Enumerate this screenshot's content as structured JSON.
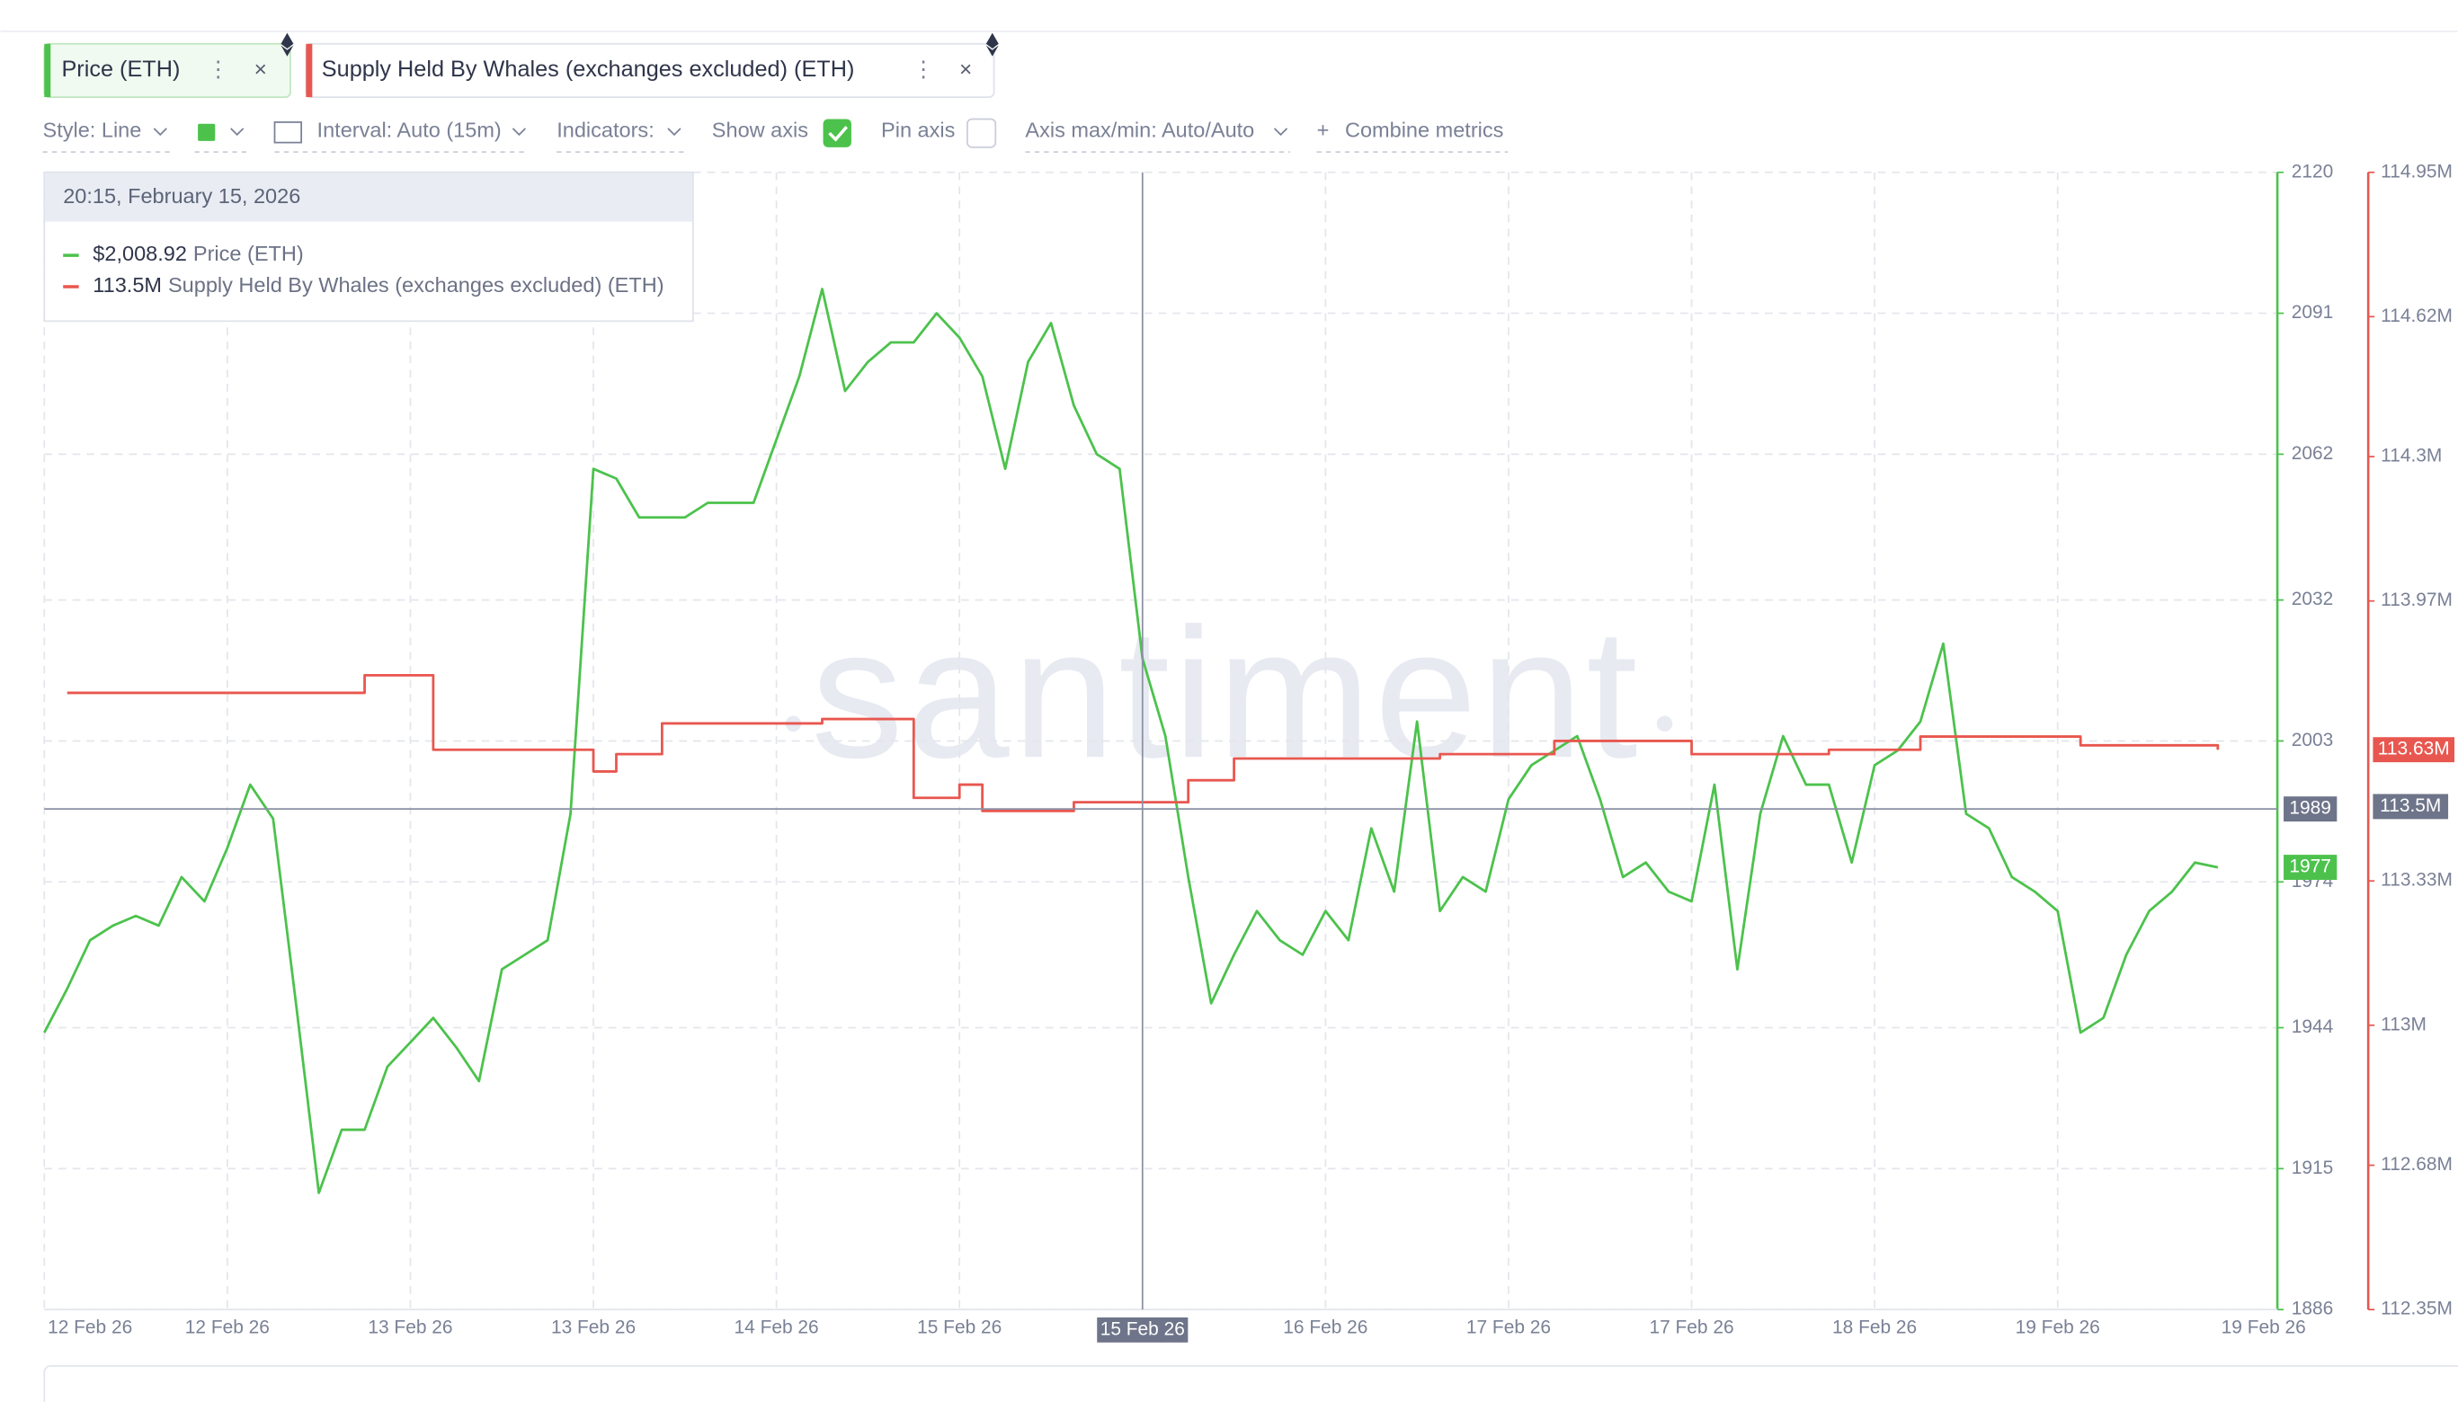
{
  "chart_data": {
    "type": "line",
    "watermark": "santiment",
    "toolbar": {
      "style": "Style: Line",
      "interval": "Interval: Auto (15m)",
      "indicators": "Indicators:",
      "show_axis": "Show axis",
      "pin_axis": "Pin axis",
      "axis_minmax": "Axis max/min: Auto/Auto",
      "combine": "Combine metrics"
    },
    "categories": [
      null,
      null,
      "12 Feb 26",
      null,
      null,
      null,
      null,
      null,
      "12 Feb 26",
      null,
      null,
      null,
      null,
      null,
      null,
      null,
      "13 Feb 26",
      null,
      null,
      null,
      null,
      null,
      null,
      null,
      "13 Feb 26",
      null,
      null,
      null,
      null,
      null,
      null,
      null,
      "14 Feb 26",
      null,
      null,
      null,
      null,
      null,
      null,
      null,
      "15 Feb 26",
      null,
      null,
      null,
      null,
      null,
      null,
      null,
      "15 Feb 26",
      null,
      null,
      null,
      null,
      null,
      null,
      null,
      "16 Feb 26",
      null,
      null,
      null,
      null,
      null,
      null,
      null,
      "17 Feb 26",
      null,
      null,
      null,
      null,
      null,
      null,
      null,
      "17 Feb 26",
      null,
      null,
      null,
      null,
      null,
      null,
      null,
      "18 Feb 26",
      null,
      null,
      null,
      null,
      null,
      null,
      null,
      "19 Feb 26",
      null,
      null,
      null,
      null,
      null,
      null,
      null,
      null,
      "19 Feb 26"
    ],
    "series": [
      {
        "name": "Price (ETH)",
        "color": "#4cc24c",
        "axis": "y",
        "values": [
          1943,
          1952,
          1962,
          1965,
          1967,
          1965,
          1975,
          1970,
          1981,
          1994,
          1987,
          1949,
          1910,
          1923,
          1923,
          1936,
          1941,
          1946,
          1940,
          1933,
          1956,
          1959,
          1962,
          1988,
          2059,
          2057,
          2049,
          2049,
          2049,
          2052,
          2052,
          2052,
          2065,
          2078,
          2096,
          2075,
          2081,
          2085,
          2085,
          2091,
          2086,
          2078,
          2059,
          2081,
          2089,
          2072,
          2062,
          2059,
          2020,
          2004,
          1975,
          1949,
          1959,
          1968,
          1962,
          1959,
          1968,
          1962,
          1985,
          1972,
          2007,
          1968,
          1975,
          1972,
          1991,
          1998,
          2001,
          2004,
          1991,
          1975,
          1978,
          1972,
          1970,
          1994,
          1956,
          1988,
          2004,
          1994,
          1994,
          1978,
          1998,
          2001,
          2007,
          2023,
          1988,
          1985,
          1975,
          1972,
          1968,
          1943,
          1946,
          1959,
          1968,
          1972,
          1978,
          1977,
          null,
          null
        ]
      },
      {
        "name": "Supply Held By Whales (exchanges excluded) (ETH)",
        "color": "#e8574f",
        "axis": "y2",
        "last_label": "113.63M",
        "values": [
          null,
          113.76,
          113.76,
          113.76,
          113.76,
          113.76,
          113.76,
          113.76,
          113.76,
          113.76,
          113.76,
          113.76,
          113.76,
          113.76,
          113.8,
          113.8,
          113.8,
          113.63,
          113.63,
          113.63,
          113.63,
          113.63,
          113.63,
          113.63,
          113.58,
          113.62,
          113.62,
          113.69,
          113.69,
          113.69,
          113.69,
          113.69,
          113.69,
          113.69,
          113.7,
          113.7,
          113.7,
          113.7,
          113.52,
          113.52,
          113.55,
          113.49,
          113.49,
          113.49,
          113.49,
          113.51,
          113.51,
          113.51,
          113.51,
          113.51,
          113.56,
          113.56,
          113.61,
          113.61,
          113.61,
          113.61,
          113.61,
          113.61,
          113.61,
          113.61,
          113.61,
          113.62,
          113.62,
          113.62,
          113.62,
          113.62,
          113.65,
          113.65,
          113.65,
          113.65,
          113.65,
          113.65,
          113.62,
          113.62,
          113.62,
          113.62,
          113.62,
          113.62,
          113.63,
          113.63,
          113.63,
          113.63,
          113.66,
          113.66,
          113.66,
          113.66,
          113.66,
          113.66,
          113.66,
          113.64,
          113.64,
          113.64,
          113.64,
          113.64,
          113.64,
          113.63,
          null,
          null
        ]
      }
    ],
    "ylim": [
      1886,
      2120
    ],
    "yticks": [
      1886,
      1915,
      1944,
      1974,
      2003,
      2032,
      2062,
      2091,
      2120
    ],
    "y2lim": [
      112.35,
      114.95
    ],
    "y2ticks": [
      {
        "value": 112.35,
        "label": "112.35M"
      },
      {
        "value": 112.68,
        "label": "112.68M"
      },
      {
        "value": 113,
        "label": "113M"
      },
      {
        "value": 113.33,
        "label": "113.33M"
      },
      {
        "value": 113.97,
        "label": "113.97M"
      },
      {
        "value": 114.3,
        "label": "114.3M"
      },
      {
        "value": 114.62,
        "label": "114.62M"
      },
      {
        "value": 114.95,
        "label": "114.95M"
      }
    ],
    "grid": true,
    "crosshair": {
      "y": 1989,
      "y2": {
        "value": 113.5,
        "label": "113.5M"
      }
    },
    "tooltip": {
      "title": "20:15, February 15, 2026",
      "rows": [
        {
          "value": 2008.92,
          "label": "$2,008.92"
        },
        {
          "value": 113.5,
          "label": "113.5M"
        }
      ]
    }
  }
}
